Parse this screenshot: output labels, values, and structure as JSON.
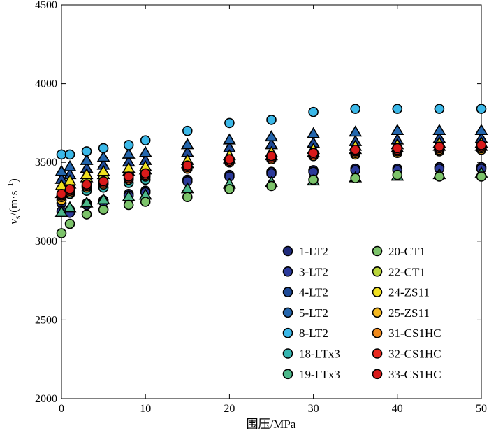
{
  "chart_data": {
    "type": "scatter",
    "title": "",
    "xlabel": "围压/MPa",
    "ylabel": "vs/(m·s⁻¹)",
    "ylabel_main": "v",
    "ylabel_sub": "s",
    "ylabel_rest": "/(m·s",
    "ylabel_sup": "−1",
    "ylabel_close": ")",
    "xlim": [
      0,
      50
    ],
    "ylim": [
      2000,
      4500
    ],
    "xticks": [
      0,
      10,
      20,
      30,
      40,
      50
    ],
    "yticks": [
      2000,
      2500,
      3000,
      3500,
      4000,
      4500
    ],
    "legend_location": "lower-right",
    "x": [
      0,
      1,
      3,
      5,
      8,
      10,
      15,
      20,
      25,
      30,
      35,
      40,
      45,
      50
    ],
    "series": [
      {
        "name": "1-LT2",
        "color": "#1f2a7a",
        "marker": "circle",
        "values": [
          3240,
          3200,
          3240,
          3260,
          3300,
          3320,
          3390,
          3420,
          3440,
          3450,
          3460,
          3460,
          3470,
          3470
        ]
      },
      {
        "name": "3-LT2",
        "color": "#2b3a9a",
        "marker": "circle",
        "values": [
          3190,
          3180,
          3230,
          3250,
          3290,
          3310,
          3380,
          3410,
          3430,
          3440,
          3450,
          3450,
          3460,
          3460
        ]
      },
      {
        "name": "4-LT2",
        "color": "#1e4a96",
        "marker": "triangle",
        "values": [
          3390,
          3420,
          3460,
          3480,
          3500,
          3510,
          3560,
          3590,
          3610,
          3620,
          3630,
          3640,
          3650,
          3650
        ]
      },
      {
        "name": "5-LT2",
        "color": "#2466ad",
        "marker": "triangle",
        "values": [
          3440,
          3470,
          3510,
          3530,
          3550,
          3560,
          3610,
          3640,
          3660,
          3680,
          3690,
          3700,
          3700,
          3700
        ]
      },
      {
        "name": "8-LT2",
        "color": "#3bb8e8",
        "marker": "circle",
        "values": [
          3550,
          3550,
          3570,
          3590,
          3610,
          3640,
          3700,
          3750,
          3770,
          3820,
          3840,
          3840,
          3840,
          3840
        ]
      },
      {
        "name": "18-LTx3",
        "color": "#35b5b0",
        "marker": "circle",
        "values": [
          3280,
          3300,
          3320,
          3340,
          3370,
          3390,
          3460,
          3510,
          3540,
          3560,
          3570,
          3580,
          3590,
          3590
        ]
      },
      {
        "name": "19-LTx3",
        "color": "#4cb88a",
        "marker": "triangle",
        "values": [
          3180,
          3210,
          3240,
          3260,
          3280,
          3290,
          3330,
          3360,
          3370,
          3380,
          3400,
          3410,
          3420,
          3430
        ]
      },
      {
        "name": "20-CT1",
        "color": "#7cc36a",
        "marker": "circle",
        "values": [
          3050,
          3110,
          3170,
          3200,
          3230,
          3250,
          3280,
          3330,
          3350,
          3390,
          3400,
          3420,
          3410,
          3410
        ]
      },
      {
        "name": "22-CT1",
        "color": "#b9d53a",
        "marker": "triangle",
        "values": [
          3300,
          3360,
          3400,
          3420,
          3440,
          3450,
          3490,
          3520,
          3540,
          3560,
          3580,
          3590,
          3600,
          3600
        ]
      },
      {
        "name": "24-ZS11",
        "color": "#f0e020",
        "marker": "triangle",
        "values": [
          3350,
          3380,
          3420,
          3440,
          3460,
          3470,
          3510,
          3540,
          3560,
          3580,
          3600,
          3610,
          3620,
          3620
        ]
      },
      {
        "name": "25-ZS11",
        "color": "#f5b820",
        "marker": "circle",
        "values": [
          3260,
          3320,
          3350,
          3370,
          3400,
          3420,
          3470,
          3500,
          3520,
          3540,
          3550,
          3560,
          3570,
          3580
        ]
      },
      {
        "name": "31-CS1HC",
        "color": "#f08a1c",
        "marker": "circle",
        "values": [
          3280,
          3310,
          3340,
          3360,
          3390,
          3410,
          3460,
          3500,
          3520,
          3540,
          3560,
          3570,
          3580,
          3590
        ]
      },
      {
        "name": "32-CS1HC",
        "color": "#e8281e",
        "marker": "circle",
        "values": [
          3290,
          3320,
          3350,
          3370,
          3400,
          3420,
          3470,
          3510,
          3530,
          3550,
          3570,
          3580,
          3590,
          3600
        ]
      },
      {
        "name": "33-CS1HC",
        "color": "#d91a1a",
        "marker": "circle",
        "values": [
          3300,
          3330,
          3360,
          3380,
          3410,
          3430,
          3480,
          3520,
          3540,
          3560,
          3580,
          3590,
          3600,
          3610
        ]
      }
    ]
  }
}
